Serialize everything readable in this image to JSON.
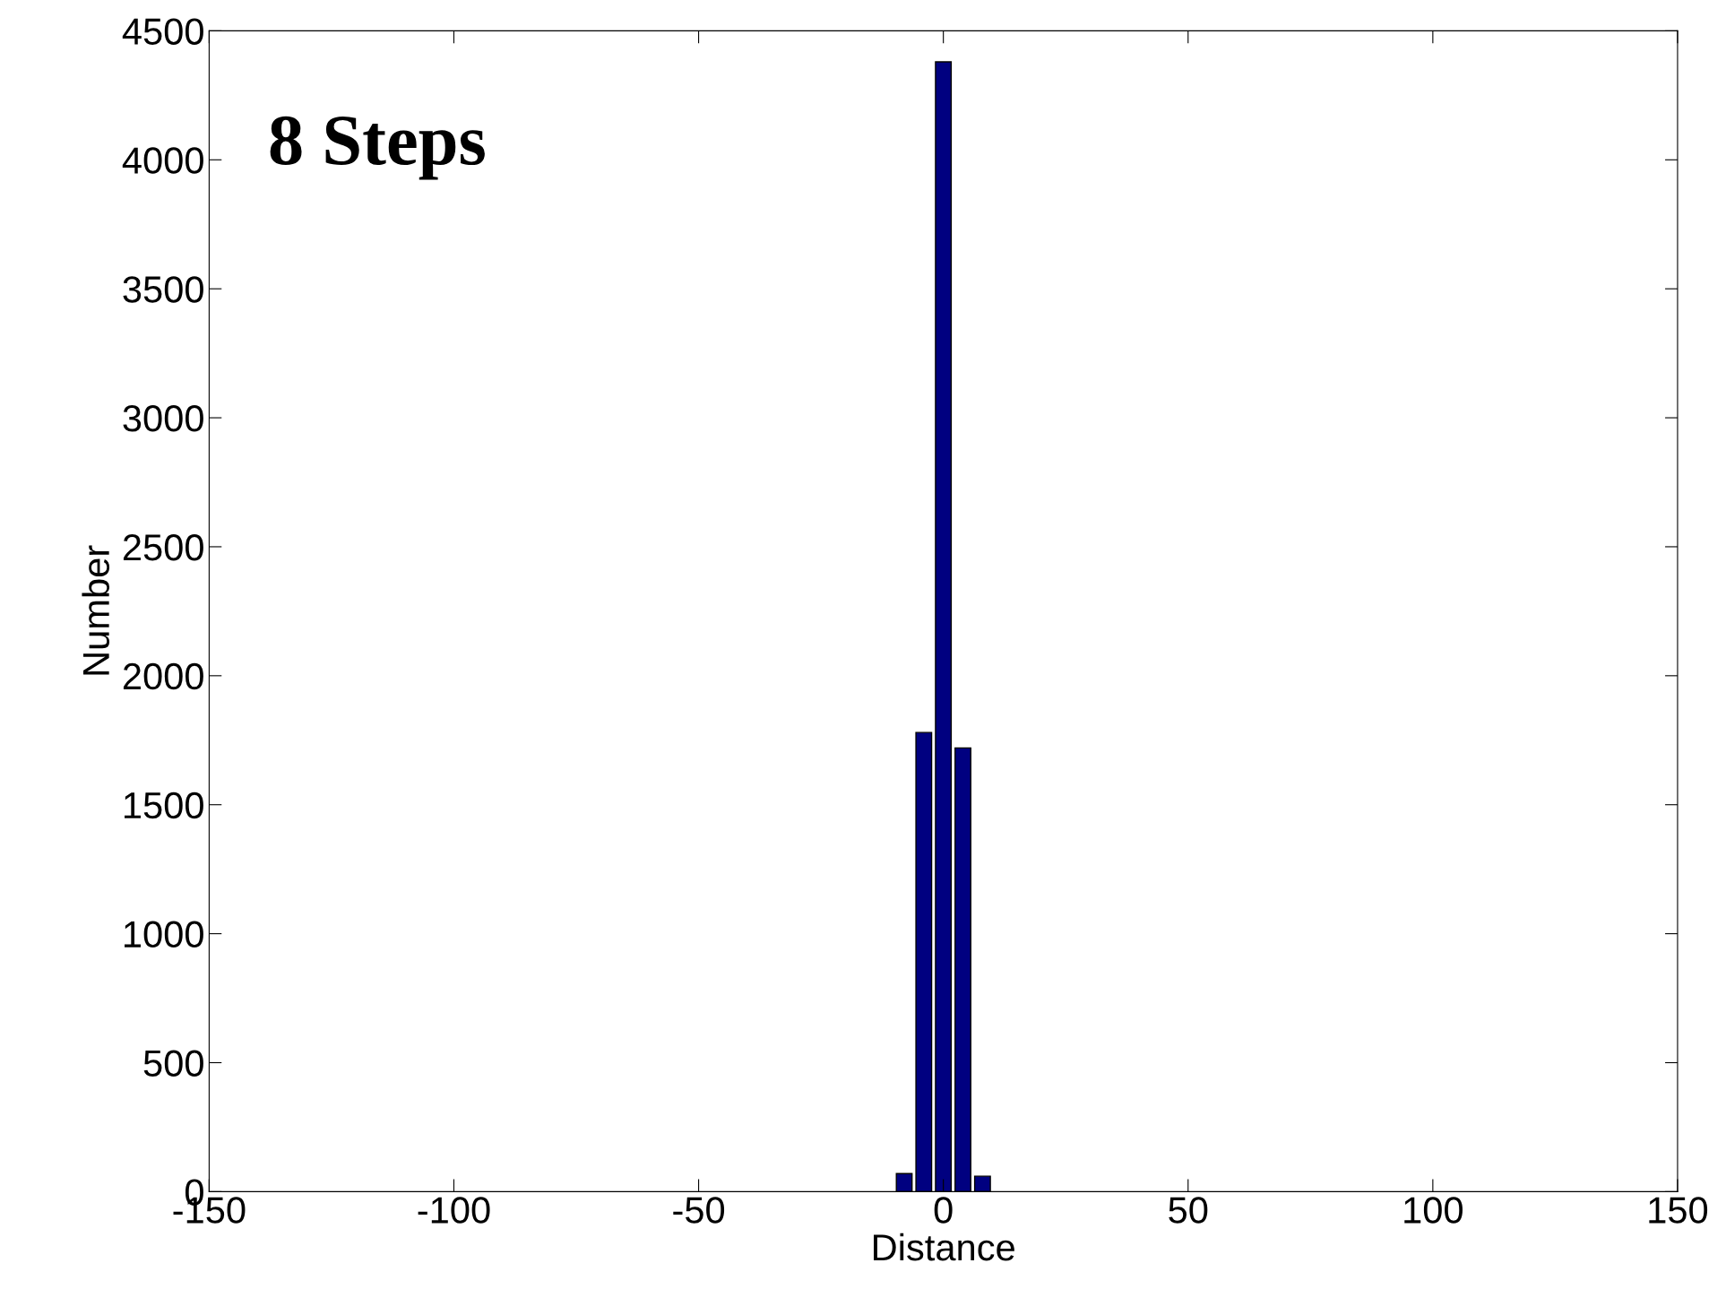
{
  "chart_data": {
    "type": "bar",
    "xlabel": "Distance",
    "ylabel": "Number",
    "annotations": [
      "8 Steps"
    ],
    "x": [
      -8,
      -4,
      0,
      4,
      8
    ],
    "values": [
      70,
      1780,
      4380,
      1720,
      60
    ],
    "color": "#000080",
    "xlim": [
      -150,
      150
    ],
    "xticks": [
      -150,
      -100,
      -50,
      0,
      50,
      100,
      150
    ],
    "ylim": [
      0,
      4500
    ],
    "yticks": [
      0,
      500,
      1000,
      1500,
      2000,
      2500,
      3000,
      3500,
      4000,
      4500
    ],
    "grid": false,
    "legend": false
  }
}
